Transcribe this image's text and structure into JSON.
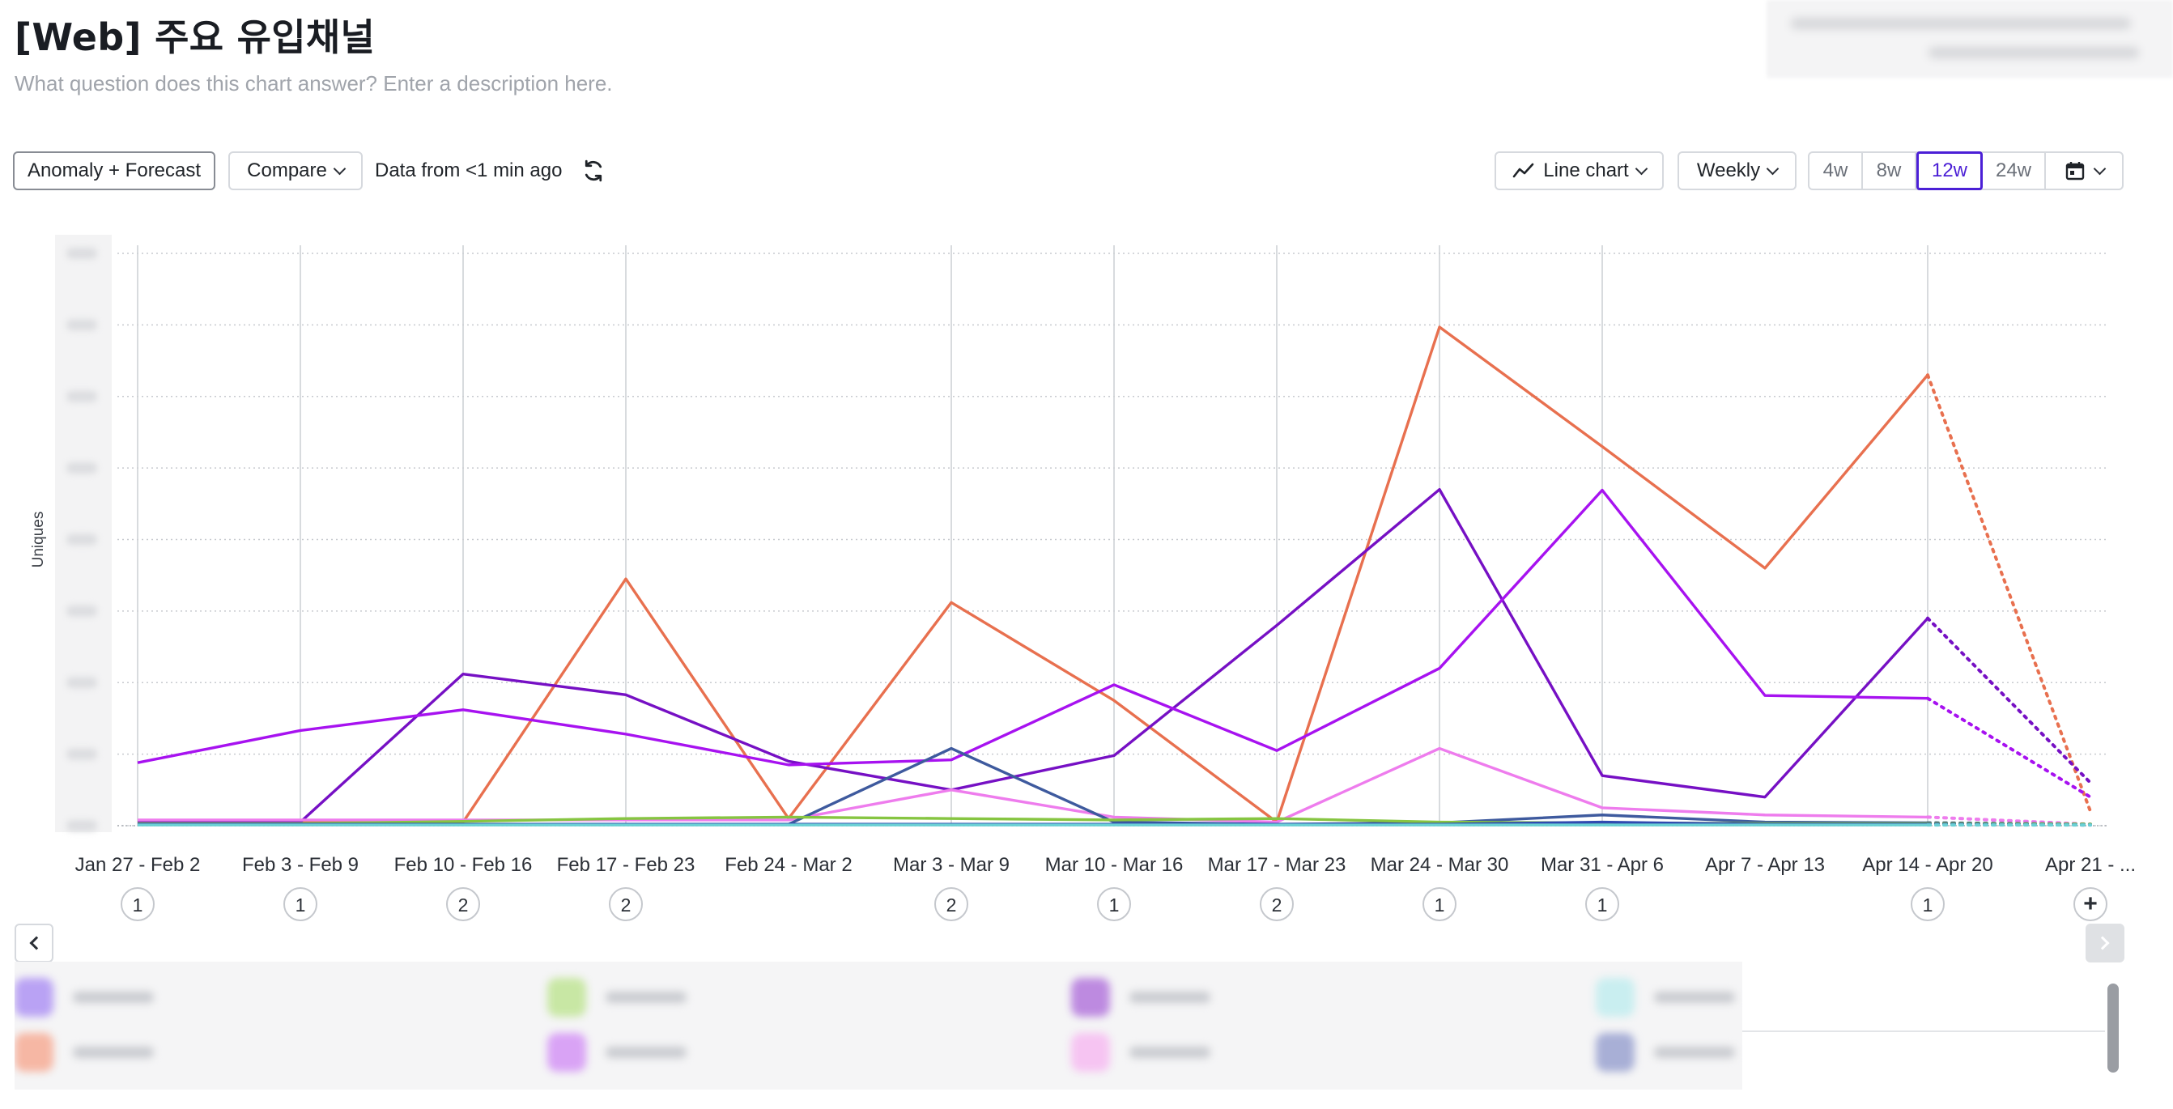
{
  "title": "[Web] 주요 유입채널",
  "description": "What question does this chart answer? Enter a description here.",
  "toolbar": {
    "anomaly_label": "Anomaly + Forecast",
    "compare_label": "Compare",
    "data_from": "Data from <1 min ago",
    "chart_type_label": "Line chart",
    "interval_label": "Weekly",
    "ranges": [
      "4w",
      "8w",
      "12w",
      "24w"
    ],
    "active_range": "12w"
  },
  "icons": {
    "refresh": "refresh-icon",
    "line_chart": "line-chart-icon",
    "calendar": "calendar-icon",
    "prev": "chevron-left-icon",
    "next": "chevron-right-icon"
  },
  "colors": {
    "accent": "#4b1fd6",
    "grid": "#c7cacf"
  },
  "chart_data": {
    "type": "line",
    "ylabel": "Uniques",
    "ylim": [
      0,
      8
    ],
    "y_tick_labels_visible": false,
    "grid": true,
    "categories": [
      "Jan 27 - Feb 2",
      "Feb 3 - Feb 9",
      "Feb 10 - Feb 16",
      "Feb 17 - Feb 23",
      "Feb 24 - Mar 2",
      "Mar 3 - Mar 9",
      "Mar 10 - Mar 16",
      "Mar 17 - Mar 23",
      "Mar 24 - Mar 30",
      "Mar 31 - Apr 6",
      "Apr 7 - Apr 13",
      "Apr 14 - Apr 20",
      "Apr 21 - ..."
    ],
    "annotation_counts": [
      "1",
      "1",
      "2",
      "2",
      "",
      "2",
      "1",
      "2",
      "1",
      "1",
      "",
      "1",
      "+"
    ],
    "forecast_from_index": 11,
    "series": [
      {
        "color": "#e8704f",
        "values": [
          0.05,
          0.05,
          0.05,
          3.45,
          0.1,
          3.12,
          1.75,
          0.05,
          6.97,
          5.3,
          3.6,
          6.3,
          0.2
        ]
      },
      {
        "color": "#7610c4",
        "values": [
          0.05,
          0.05,
          2.12,
          1.83,
          0.9,
          0.5,
          0.98,
          2.8,
          4.7,
          0.7,
          0.4,
          2.9,
          0.6
        ]
      },
      {
        "color": "#a712f0",
        "values": [
          0.88,
          1.33,
          1.62,
          1.28,
          0.85,
          0.92,
          1.97,
          1.05,
          2.2,
          4.69,
          1.82,
          1.78,
          0.4
        ]
      },
      {
        "color": "#ee7ced",
        "values": [
          0.08,
          0.08,
          0.08,
          0.08,
          0.08,
          0.5,
          0.12,
          0.05,
          1.08,
          0.25,
          0.15,
          0.12,
          0.02
        ]
      },
      {
        "color": "#3e5a9e",
        "values": [
          0.02,
          0.02,
          0.02,
          0.02,
          0.02,
          1.08,
          0.05,
          0.02,
          0.04,
          0.15,
          0.05,
          0.04,
          0.02
        ]
      },
      {
        "color": "#86c541",
        "values": [
          0.03,
          0.03,
          0.06,
          0.1,
          0.12,
          0.1,
          0.08,
          0.1,
          0.05,
          0.04,
          0.03,
          0.03,
          0.02
        ]
      },
      {
        "color": "#2f4ab0",
        "values": [
          0.02,
          0.02,
          0.02,
          0.02,
          0.02,
          0.02,
          0.02,
          0.02,
          0.02,
          0.05,
          0.02,
          0.02,
          0.01
        ]
      },
      {
        "color": "#6ad0d4",
        "values": [
          0.01,
          0.01,
          0.01,
          0.01,
          0.01,
          0.01,
          0.01,
          0.01,
          0.01,
          0.01,
          0.01,
          0.01,
          0.01
        ]
      }
    ]
  },
  "legend": {
    "swatch_colors": [
      "#b9a2f4",
      "#c8e7a4",
      "#bd8ae0",
      "#c9eef0",
      "#f6b7a4",
      "#d9a3f5",
      "#f6c4f2",
      "#a8afd6"
    ]
  }
}
